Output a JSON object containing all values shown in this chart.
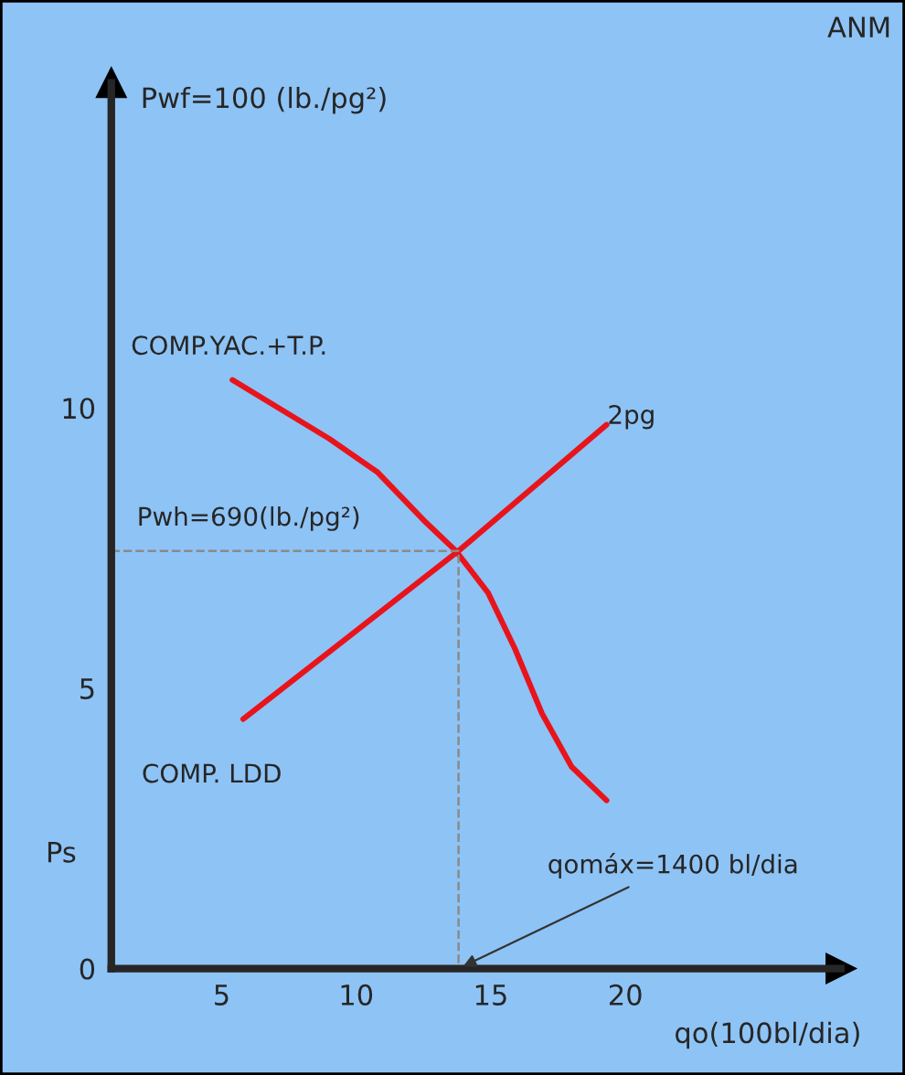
{
  "chart_data": {
    "type": "line",
    "xlabel": "qo(100bl/dia)",
    "ylabel": "Pwf=100 (lb./pg²)",
    "series": [
      {
        "name": "COMP.YAC.+T.P.",
        "color": "#e8141c",
        "x": [
          5.4,
          9.0,
          10.8,
          12.5,
          13.7,
          14.9,
          15.9,
          16.9,
          18.0,
          19.3
        ],
        "values": [
          10.5,
          9.45,
          8.85,
          8.0,
          7.45,
          6.7,
          5.7,
          4.55,
          3.6,
          3.0
        ]
      },
      {
        "name": "COMP. LDD",
        "color": "#e8141c",
        "x": [
          5.8,
          13.8,
          19.3
        ],
        "values": [
          4.45,
          7.45,
          9.7
        ]
      },
      {
        "color": "#8a8a8a",
        "line_style": "dashed",
        "x": [
          0.9,
          13.8,
          13.8
        ],
        "values": [
          7.45,
          7.45,
          0
        ]
      }
    ],
    "xlim": [
      0.9,
      28
    ],
    "ylim": [
      0,
      15.8
    ],
    "xticks": [
      5,
      10,
      15,
      20
    ],
    "yticks": [
      0,
      5,
      10
    ],
    "grid": false,
    "annotations": [
      "2pg",
      "Pwh=690(lb./pg²)",
      {
        "text": "qomáx=1400 bl/dia",
        "x": 13.8,
        "y": 0
      },
      "Ps",
      "ANM"
    ]
  }
}
